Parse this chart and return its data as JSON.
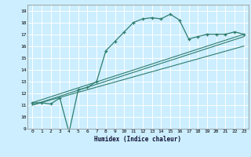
{
  "xlabel": "Humidex (Indice chaleur)",
  "bg_color": "#cceeff",
  "line_color": "#2e7d6e",
  "grid_color": "#ffffff",
  "xlim": [
    -0.5,
    23.5
  ],
  "ylim": [
    9,
    19.5
  ],
  "xticks": [
    0,
    1,
    2,
    3,
    4,
    5,
    6,
    7,
    8,
    9,
    10,
    11,
    12,
    13,
    14,
    15,
    16,
    17,
    18,
    19,
    20,
    21,
    22,
    23
  ],
  "yticks": [
    9,
    10,
    11,
    12,
    13,
    14,
    15,
    16,
    17,
    18,
    19
  ],
  "line1_x": [
    0,
    1,
    2,
    3,
    4,
    5,
    6,
    7,
    8,
    9,
    10,
    11,
    12,
    13,
    14,
    15,
    16,
    17,
    18,
    19,
    20,
    21,
    22,
    23
  ],
  "line1_y": [
    11.2,
    11.2,
    11.1,
    11.6,
    8.7,
    12.3,
    12.5,
    13.0,
    15.6,
    16.4,
    17.2,
    18.0,
    18.3,
    18.4,
    18.3,
    18.7,
    18.2,
    16.6,
    16.8,
    17.0,
    17.0,
    17.0,
    17.2,
    17.0
  ],
  "line2_x": [
    0,
    23
  ],
  "line2_y": [
    11.2,
    17.0
  ],
  "line3_x": [
    0,
    23
  ],
  "line3_y": [
    11.0,
    16.8
  ],
  "line4_x": [
    0,
    23
  ],
  "line4_y": [
    11.0,
    16.0
  ]
}
